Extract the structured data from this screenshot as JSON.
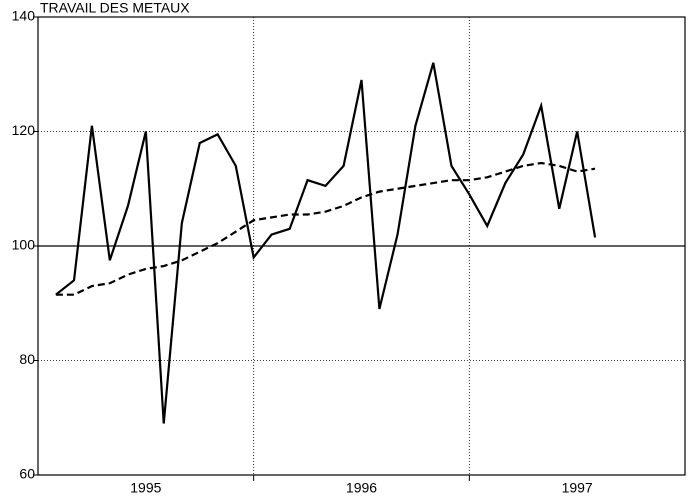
{
  "chart_data": {
    "type": "line",
    "title": "TRAVAIL DES METAUX",
    "x": [
      1995.083,
      1995.167,
      1995.25,
      1995.333,
      1995.417,
      1995.5,
      1995.583,
      1995.667,
      1995.75,
      1995.833,
      1995.917,
      1996.0,
      1996.083,
      1996.167,
      1996.25,
      1996.333,
      1996.417,
      1996.5,
      1996.583,
      1996.667,
      1996.75,
      1996.833,
      1996.917,
      1997.0,
      1997.083,
      1997.167,
      1997.25,
      1997.333,
      1997.417,
      1997.5,
      1997.583
    ],
    "series": [
      {
        "color": "#000000",
        "dash": "solid",
        "values": [
          91.5,
          94,
          121,
          97.5,
          107,
          120,
          69,
          104,
          118,
          119.5,
          114,
          98,
          102,
          103,
          111.5,
          110.5,
          114,
          129,
          89,
          102,
          121,
          132,
          114,
          109,
          103.5,
          111,
          116,
          124.5,
          106.5,
          120,
          101.5
        ]
      },
      {
        "color": "#000000",
        "dash": "dashed",
        "values": [
          91.5,
          91.5,
          93,
          93.5,
          95,
          96,
          96.5,
          97.5,
          99,
          100.5,
          102.5,
          104.5,
          105,
          105.5,
          105.5,
          106,
          107,
          108.5,
          109.5,
          110,
          110.5,
          111,
          111.5,
          111.5,
          112,
          113,
          114,
          114.5,
          114,
          113,
          113.5
        ]
      }
    ],
    "xlim": [
      1995,
      1998
    ],
    "xticks": [
      {
        "value": 1995.5,
        "label": "1995"
      },
      {
        "value": 1996.5,
        "label": "1996"
      },
      {
        "value": 1997.5,
        "label": "1997"
      }
    ],
    "xgrid": [
      1996,
      1997
    ],
    "ylim": [
      60,
      140
    ],
    "yticks": [
      60,
      80,
      100,
      120,
      140
    ],
    "reference_line": 100,
    "grid": true
  }
}
